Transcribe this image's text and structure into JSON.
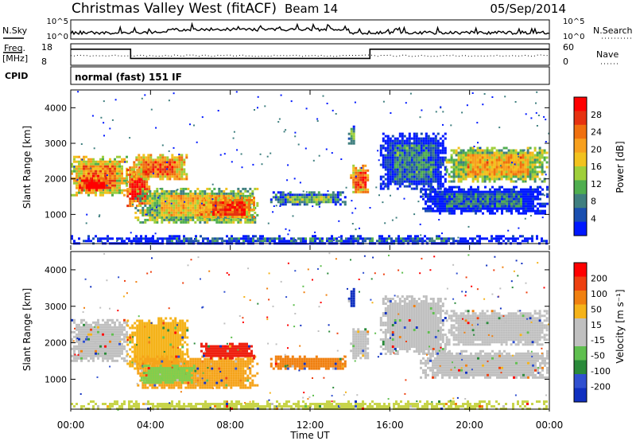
{
  "header": {
    "title": "Christmas Valley West (fitACF)",
    "beam": "Beam 14",
    "date": "05/Sep/2014"
  },
  "nsky_panel": {
    "label": "N.Sky",
    "yticks": [
      "10^5",
      "10^0"
    ],
    "right_label": "N.Search",
    "right_yticks": [
      "10^5",
      "10^0"
    ]
  },
  "freq_panel": {
    "label_line1": "Freq.",
    "label_line2": "[MHz]",
    "yticks": [
      "18",
      "8"
    ],
    "right_label": "Nave",
    "right_yticks": [
      "60",
      "0"
    ],
    "freq_steps": [
      {
        "t": 0,
        "v": 15.5
      },
      {
        "t": 3.0,
        "v": 15.5
      },
      {
        "t": 3.0,
        "v": 11.2
      },
      {
        "t": 15.0,
        "v": 11.2
      },
      {
        "t": 15.0,
        "v": 15.5
      },
      {
        "t": 24,
        "v": 15.5
      }
    ]
  },
  "cpid": {
    "label": "CPID",
    "text": "normal (fast) 151 IF"
  },
  "chart_data": [
    {
      "type": "heatmap",
      "name": "power",
      "ylabel": "Slant Range [km]",
      "xlim": [
        0,
        24
      ],
      "ylim": [
        180,
        4500
      ],
      "yticks": [
        "1000",
        "2000",
        "3000",
        "4000"
      ],
      "colorbar_label": "Power [dB]",
      "colorbar_ticks": [
        "28",
        "24",
        "20",
        "16",
        "12",
        "8",
        "4"
      ],
      "colorbar_colors": [
        "#0018ff",
        "#1a4fb0",
        "#3f7f7f",
        "#4fae4f",
        "#9fcf3a",
        "#f2c21e",
        "#f7a01e",
        "#f0700f",
        "#e63210",
        "#ff0000"
      ],
      "regions": [
        {
          "t0": 0.0,
          "t1": 2.8,
          "r0": 1550,
          "r1": 2650,
          "level": 0.65
        },
        {
          "t0": 0.4,
          "t1": 1.9,
          "r0": 1700,
          "r1": 2050,
          "level": 0.95
        },
        {
          "t0": 2.8,
          "t1": 3.9,
          "r0": 1250,
          "r1": 2350,
          "level": 0.85
        },
        {
          "t0": 3.0,
          "t1": 5.8,
          "r0": 2000,
          "r1": 2700,
          "level": 0.7
        },
        {
          "t0": 3.2,
          "t1": 9.3,
          "r0": 750,
          "r1": 1750,
          "level": 0.5
        },
        {
          "t0": 6.5,
          "t1": 9.2,
          "r0": 900,
          "r1": 1500,
          "level": 0.75
        },
        {
          "t0": 10.0,
          "t1": 13.8,
          "r0": 1300,
          "r1": 1650,
          "level": 0.3
        },
        {
          "t0": 14.0,
          "t1": 14.9,
          "r0": 1600,
          "r1": 2400,
          "level": 0.75
        },
        {
          "t0": 13.9,
          "t1": 14.2,
          "r0": 3000,
          "r1": 3500,
          "level": 0.35
        },
        {
          "t0": 15.5,
          "t1": 18.8,
          "r0": 1700,
          "r1": 3300,
          "level": 0.15
        },
        {
          "t0": 17.5,
          "t1": 23.9,
          "r0": 1050,
          "r1": 1800,
          "level": 0.12
        },
        {
          "t0": 18.8,
          "t1": 23.9,
          "r0": 1950,
          "r1": 2900,
          "level": 0.55
        },
        {
          "t0": 0.0,
          "t1": 23.9,
          "r0": 180,
          "r1": 420,
          "level": 0.1
        }
      ]
    },
    {
      "type": "heatmap",
      "name": "velocity",
      "ylabel": "Slant Range [km]",
      "xlabel": "Time UT",
      "xlim": [
        0,
        24
      ],
      "ylim": [
        180,
        4500
      ],
      "xticks": [
        "00:00",
        "04:00",
        "08:00",
        "12:00",
        "16:00",
        "20:00",
        "00:00"
      ],
      "yticks": [
        "1000",
        "2000",
        "3000",
        "4000"
      ],
      "colorbar_label": "Velocity [m s⁻¹]",
      "colorbar_ticks": [
        "200",
        "100",
        "50",
        "15",
        "-15",
        "-50",
        "-100",
        "-200"
      ],
      "colorbar_colors": [
        "#1030c0",
        "#3050d0",
        "#2a8a3a",
        "#5fbf4f",
        "#c0c0c0",
        "#c0c0c0",
        "#f5b31a",
        "#f08010",
        "#ee4010",
        "#ff0000"
      ],
      "regions": [
        {
          "t0": 0.0,
          "t1": 2.8,
          "r0": 1500,
          "r1": 2650,
          "color": "#c0c0c0"
        },
        {
          "t0": 2.8,
          "t1": 5.8,
          "r0": 1300,
          "r1": 2700,
          "color": "#f5b31a"
        },
        {
          "t0": 3.2,
          "t1": 9.3,
          "r0": 750,
          "r1": 1650,
          "color": "#f5a31a"
        },
        {
          "t0": 3.5,
          "t1": 6.2,
          "r0": 900,
          "r1": 1400,
          "color": "#7fcf4f"
        },
        {
          "t0": 6.5,
          "t1": 9.2,
          "r0": 1600,
          "r1": 2000,
          "color": "#ee2010"
        },
        {
          "t0": 10.0,
          "t1": 13.8,
          "r0": 1300,
          "r1": 1650,
          "color": "#f08010"
        },
        {
          "t0": 14.0,
          "t1": 14.9,
          "r0": 1600,
          "r1": 2400,
          "color": "#c0c0c0"
        },
        {
          "t0": 13.9,
          "t1": 14.2,
          "r0": 3000,
          "r1": 3500,
          "color": "#1030c0"
        },
        {
          "t0": 15.5,
          "t1": 18.8,
          "r0": 1700,
          "r1": 3300,
          "color": "#c0c0c0"
        },
        {
          "t0": 17.5,
          "t1": 23.9,
          "r0": 1050,
          "r1": 1800,
          "color": "#c0c0c0"
        },
        {
          "t0": 18.8,
          "t1": 23.9,
          "r0": 1950,
          "r1": 2900,
          "color": "#c0c0c0"
        },
        {
          "t0": 0.0,
          "t1": 23.9,
          "r0": 180,
          "r1": 420,
          "color": "#c7d44a"
        }
      ]
    }
  ]
}
